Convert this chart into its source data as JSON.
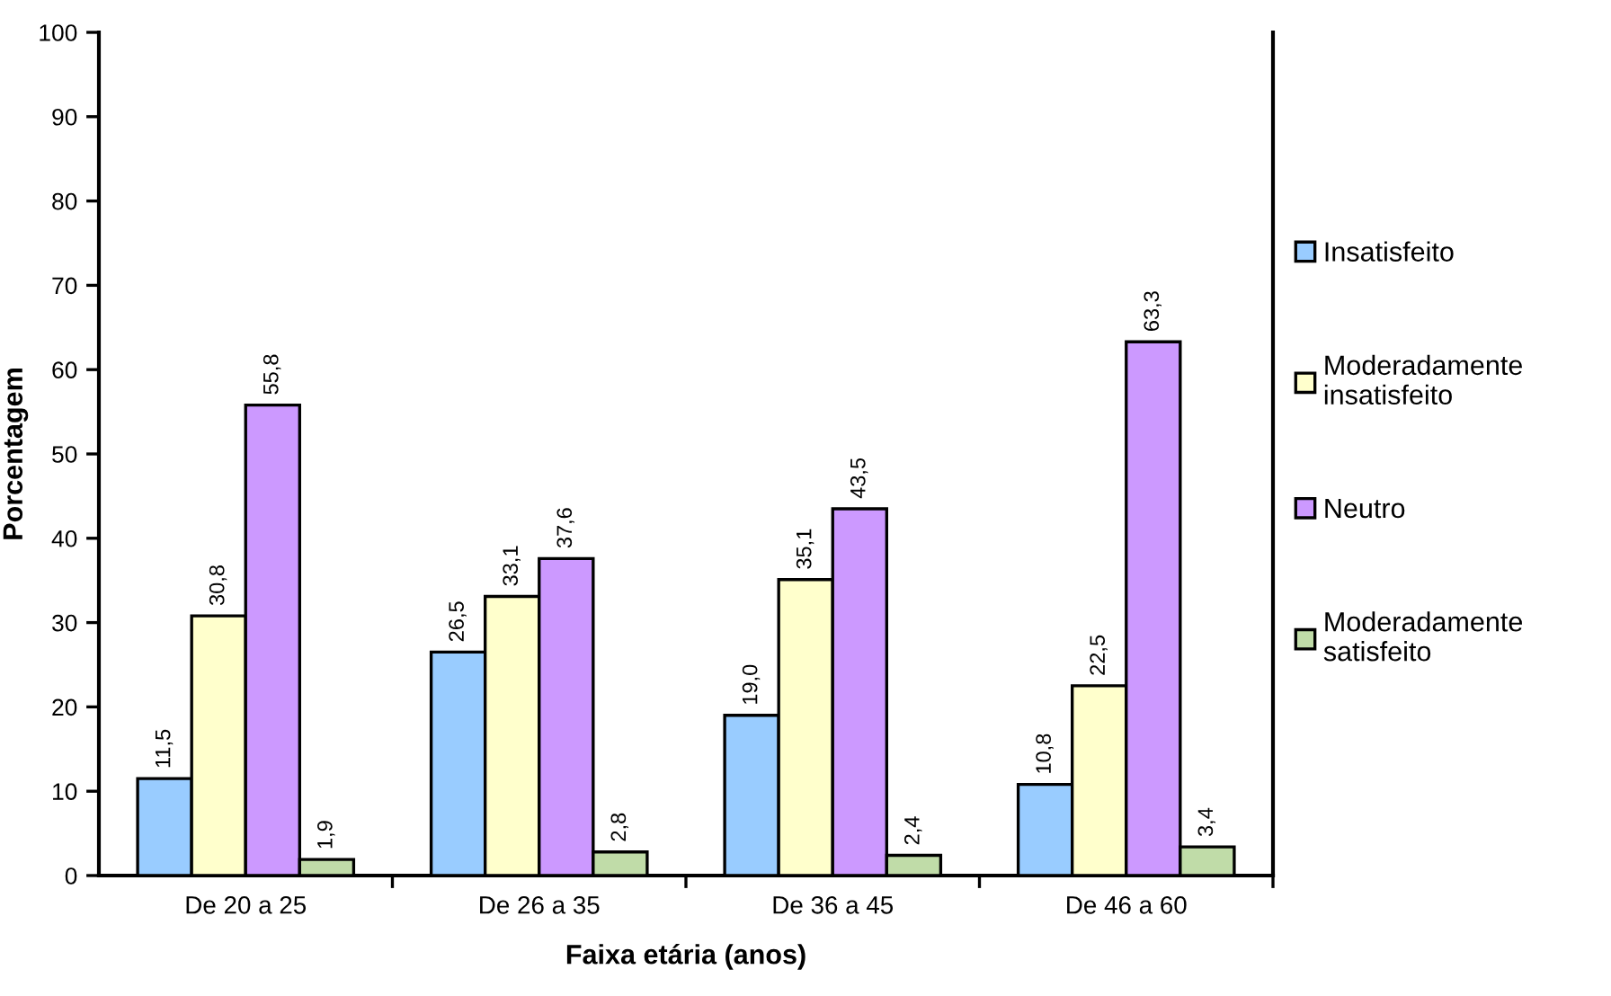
{
  "chart_data": {
    "type": "bar",
    "xlabel": "Faixa etária (anos)",
    "ylabel": "Porcentagem",
    "categories": [
      "De 20 a 25",
      "De 26 a 35",
      "De 36 a 45",
      "De 46 a 60"
    ],
    "series": [
      {
        "name": "Insatisfeito",
        "color": "#99ccff",
        "values": [
          11.5,
          26.5,
          19.0,
          10.8
        ],
        "value_labels": [
          "11,5",
          "26,5",
          "19,0",
          "10,8"
        ]
      },
      {
        "name": "Moderadamente insatisfeito",
        "color": "#ffffcc",
        "values": [
          30.8,
          33.1,
          35.1,
          22.5
        ],
        "value_labels": [
          "30,8",
          "33,1",
          "35,1",
          "22,5"
        ]
      },
      {
        "name": "Neutro",
        "color": "#cc99ff",
        "values": [
          55.8,
          37.6,
          43.5,
          63.3
        ],
        "value_labels": [
          "55,8",
          "37,6",
          "43,5",
          "63,3"
        ]
      },
      {
        "name": "Moderadamente satisfeito",
        "color": "#c0dca8",
        "values": [
          1.9,
          2.8,
          2.4,
          3.4
        ],
        "value_labels": [
          "1,9",
          "2,8",
          "2,4",
          "3,4"
        ]
      }
    ],
    "ylim": [
      0,
      100
    ],
    "yticks": [
      0,
      10,
      20,
      30,
      40,
      50,
      60,
      70,
      80,
      90,
      100
    ],
    "grid": false,
    "legend": "right"
  }
}
